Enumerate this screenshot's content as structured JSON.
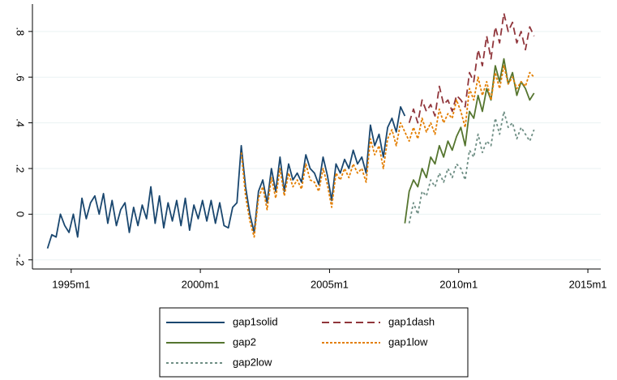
{
  "chart_data": {
    "type": "line",
    "x": [
      "1994m2",
      "1994m4",
      "1994m6",
      "1994m8",
      "1994m10",
      "1994m12",
      "1995m2",
      "1995m4",
      "1995m6",
      "1995m8",
      "1995m10",
      "1995m12",
      "1996m2",
      "1996m4",
      "1996m6",
      "1996m8",
      "1996m10",
      "1996m12",
      "1997m2",
      "1997m4",
      "1997m6",
      "1997m8",
      "1997m10",
      "1997m12",
      "1998m2",
      "1998m4",
      "1998m6",
      "1998m8",
      "1998m10",
      "1998m12",
      "1999m2",
      "1999m4",
      "1999m6",
      "1999m8",
      "1999m10",
      "1999m12",
      "2000m2",
      "2000m4",
      "2000m6",
      "2000m8",
      "2000m10",
      "2000m12",
      "2001m2",
      "2001m4",
      "2001m6",
      "2001m8",
      "2001m10",
      "2001m12",
      "2002m2",
      "2002m4",
      "2002m6",
      "2002m8",
      "2002m10",
      "2002m12",
      "2003m2",
      "2003m4",
      "2003m6",
      "2003m8",
      "2003m10",
      "2003m12",
      "2004m2",
      "2004m4",
      "2004m6",
      "2004m8",
      "2004m10",
      "2004m12",
      "2005m2",
      "2005m4",
      "2005m6",
      "2005m8",
      "2005m10",
      "2005m12",
      "2006m2",
      "2006m4",
      "2006m6",
      "2006m8",
      "2006m10",
      "2006m12",
      "2007m2",
      "2007m4",
      "2007m6",
      "2007m8",
      "2007m10",
      "2007m12",
      "2008m2",
      "2008m4",
      "2008m6",
      "2008m8",
      "2008m10",
      "2008m12",
      "2009m2",
      "2009m4",
      "2009m6",
      "2009m8",
      "2009m10",
      "2009m12",
      "2010m2",
      "2010m4",
      "2010m6",
      "2010m8",
      "2010m10",
      "2010m12",
      "2011m2",
      "2011m4",
      "2011m6",
      "2011m8",
      "2011m10",
      "2011m12",
      "2012m2",
      "2012m4",
      "2012m6",
      "2012m8",
      "2012m10",
      "2012m12"
    ],
    "series": [
      {
        "name": "gap1solid",
        "color": "#1a476f",
        "dash": "none",
        "values": [
          -0.15,
          -0.09,
          -0.1,
          0.0,
          -0.05,
          -0.08,
          0.0,
          -0.1,
          0.07,
          -0.02,
          0.05,
          0.08,
          0.0,
          0.09,
          -0.04,
          0.06,
          -0.05,
          0.02,
          0.05,
          -0.08,
          0.03,
          -0.05,
          0.04,
          -0.02,
          0.12,
          -0.04,
          0.08,
          -0.06,
          0.05,
          -0.03,
          0.06,
          -0.05,
          0.07,
          -0.07,
          0.04,
          -0.02,
          0.06,
          -0.03,
          0.06,
          -0.04,
          0.05,
          -0.05,
          -0.06,
          0.03,
          0.05,
          0.3,
          0.12,
          0.0,
          -0.08,
          0.1,
          0.15,
          0.05,
          0.2,
          0.1,
          0.25,
          0.1,
          0.22,
          0.15,
          0.18,
          0.14,
          0.26,
          0.2,
          0.18,
          0.13,
          0.25,
          0.17,
          0.06,
          0.22,
          0.18,
          0.24,
          0.2,
          0.28,
          0.22,
          0.25,
          0.18,
          0.39,
          0.3,
          0.35,
          0.25,
          0.38,
          0.42,
          0.36,
          0.47,
          0.43,
          null,
          null,
          null,
          null,
          null,
          null,
          null,
          null,
          null,
          null,
          null,
          null,
          null,
          null,
          null,
          null,
          null,
          null,
          null,
          null,
          null,
          null,
          null,
          null,
          null,
          null,
          null,
          null,
          null,
          null
        ]
      },
      {
        "name": "gap1dash",
        "color": "#90353b",
        "dash": "9,5",
        "values": [
          null,
          null,
          null,
          null,
          null,
          null,
          null,
          null,
          null,
          null,
          null,
          null,
          null,
          null,
          null,
          null,
          null,
          null,
          null,
          null,
          null,
          null,
          null,
          null,
          null,
          null,
          null,
          null,
          null,
          null,
          null,
          null,
          null,
          null,
          null,
          null,
          null,
          null,
          null,
          null,
          null,
          null,
          null,
          null,
          null,
          null,
          null,
          null,
          null,
          null,
          null,
          null,
          null,
          null,
          null,
          null,
          null,
          null,
          null,
          null,
          null,
          null,
          null,
          null,
          null,
          null,
          null,
          null,
          null,
          null,
          null,
          null,
          null,
          null,
          null,
          null,
          null,
          null,
          null,
          null,
          null,
          null,
          null,
          null,
          0.4,
          0.46,
          0.4,
          0.5,
          0.45,
          0.48,
          0.43,
          0.56,
          0.48,
          0.5,
          0.45,
          0.52,
          0.5,
          0.47,
          0.62,
          0.58,
          0.72,
          0.65,
          0.78,
          0.68,
          0.82,
          0.75,
          0.88,
          0.8,
          0.84,
          0.75,
          0.8,
          0.72,
          0.82,
          0.78
        ]
      },
      {
        "name": "gap2",
        "color": "#55752f",
        "dash": "none",
        "values": [
          null,
          null,
          null,
          null,
          null,
          null,
          null,
          null,
          null,
          null,
          null,
          null,
          null,
          null,
          null,
          null,
          null,
          null,
          null,
          null,
          null,
          null,
          null,
          null,
          null,
          null,
          null,
          null,
          null,
          null,
          null,
          null,
          null,
          null,
          null,
          null,
          null,
          null,
          null,
          null,
          null,
          null,
          null,
          null,
          null,
          null,
          null,
          null,
          null,
          null,
          null,
          null,
          null,
          null,
          null,
          null,
          null,
          null,
          null,
          null,
          null,
          null,
          null,
          null,
          null,
          null,
          null,
          null,
          null,
          null,
          null,
          null,
          null,
          null,
          null,
          null,
          null,
          null,
          null,
          null,
          null,
          null,
          null,
          -0.04,
          0.1,
          0.15,
          0.12,
          0.2,
          0.16,
          0.25,
          0.22,
          0.3,
          0.25,
          0.32,
          0.28,
          0.34,
          0.38,
          0.3,
          0.45,
          0.42,
          0.52,
          0.45,
          0.55,
          0.5,
          0.65,
          0.58,
          0.68,
          0.57,
          0.62,
          0.52,
          0.58,
          0.55,
          0.5,
          0.53
        ]
      },
      {
        "name": "gap1low",
        "color": "#e37e00",
        "dash": "3,2",
        "values": [
          null,
          null,
          null,
          null,
          null,
          null,
          null,
          null,
          null,
          null,
          null,
          null,
          null,
          null,
          null,
          null,
          null,
          null,
          null,
          null,
          null,
          null,
          null,
          null,
          null,
          null,
          null,
          null,
          null,
          null,
          null,
          null,
          null,
          null,
          null,
          null,
          null,
          null,
          null,
          null,
          null,
          null,
          null,
          null,
          null,
          0.27,
          0.08,
          -0.03,
          -0.1,
          0.07,
          0.12,
          0.02,
          0.16,
          0.07,
          0.2,
          0.08,
          0.18,
          0.12,
          0.15,
          0.11,
          0.22,
          0.15,
          0.14,
          0.1,
          0.2,
          0.13,
          0.03,
          0.18,
          0.15,
          0.2,
          0.16,
          0.22,
          0.18,
          0.2,
          0.14,
          0.33,
          0.26,
          0.3,
          0.2,
          0.33,
          0.37,
          0.3,
          0.4,
          0.36,
          0.32,
          0.38,
          0.33,
          0.42,
          0.36,
          0.4,
          0.35,
          0.46,
          0.4,
          0.44,
          0.42,
          0.5,
          0.45,
          0.38,
          0.55,
          0.5,
          0.6,
          0.52,
          0.58,
          0.5,
          0.62,
          0.55,
          0.65,
          0.57,
          0.6,
          0.55,
          0.58,
          0.56,
          0.62,
          0.6
        ]
      },
      {
        "name": "gap2low",
        "color": "#6e8e84",
        "dash": "3,3",
        "values": [
          null,
          null,
          null,
          null,
          null,
          null,
          null,
          null,
          null,
          null,
          null,
          null,
          null,
          null,
          null,
          null,
          null,
          null,
          null,
          null,
          null,
          null,
          null,
          null,
          null,
          null,
          null,
          null,
          null,
          null,
          null,
          null,
          null,
          null,
          null,
          null,
          null,
          null,
          null,
          null,
          null,
          null,
          null,
          null,
          null,
          null,
          null,
          null,
          null,
          null,
          null,
          null,
          null,
          null,
          null,
          null,
          null,
          null,
          null,
          null,
          null,
          null,
          null,
          null,
          null,
          null,
          null,
          null,
          null,
          null,
          null,
          null,
          null,
          null,
          null,
          null,
          null,
          null,
          null,
          null,
          null,
          null,
          null,
          null,
          -0.04,
          0.05,
          0.0,
          0.1,
          0.08,
          0.15,
          0.12,
          0.18,
          0.14,
          0.2,
          0.16,
          0.22,
          0.2,
          0.15,
          0.28,
          0.25,
          0.35,
          0.27,
          0.32,
          0.3,
          0.42,
          0.35,
          0.45,
          0.38,
          0.4,
          0.33,
          0.38,
          0.35,
          0.32,
          0.37
        ]
      }
    ],
    "xlim": [
      "1993m7",
      "2015m7"
    ],
    "xticks": [
      "1995m1",
      "2000m1",
      "2005m1",
      "2010m1",
      "2015m1"
    ],
    "ylim": [
      -0.24,
      0.92
    ],
    "yticks": [
      {
        "value": -0.2,
        "label": "-.2"
      },
      0,
      {
        "value": 0.2,
        "label": ".2"
      },
      {
        "value": 0.4,
        "label": ".4"
      },
      {
        "value": 0.6,
        "label": ".6"
      },
      {
        "value": 0.8,
        "label": ".8"
      }
    ],
    "grid": true,
    "legend": "bottom"
  }
}
